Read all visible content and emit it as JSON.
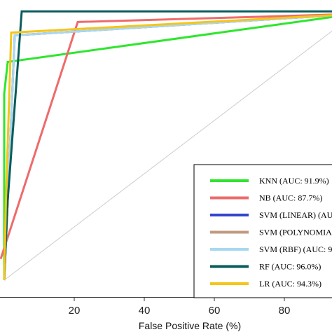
{
  "chart_data": {
    "type": "line",
    "title": "",
    "xlabel": "False Positive Rate (%)",
    "ylabel": "",
    "xlim": [
      -1.5,
      90
    ],
    "ylim": [
      0,
      100
    ],
    "x_ticks": [
      20,
      40,
      60,
      80
    ],
    "grid": false,
    "legend_placement": "bottom-right",
    "reference_line": {
      "from": [
        0,
        0
      ],
      "to": [
        100,
        100
      ],
      "color": "#cccccc"
    },
    "series": [
      {
        "name": "KNN (AUC: 91.9%)",
        "color": "#2ee62e",
        "x": [
          0,
          0,
          1,
          100
        ],
        "y": [
          0,
          70,
          82,
          100
        ]
      },
      {
        "name": "NB (AUC: 87.7%)",
        "color": "#ee6b6b",
        "x": [
          -1,
          21,
          100
        ],
        "y": [
          8,
          97,
          100
        ]
      },
      {
        "name": "SVM (LINEAR) (AUC",
        "color": "#3344cc",
        "x": [
          0,
          1,
          3,
          100
        ],
        "y": [
          0,
          30,
          92,
          100
        ]
      },
      {
        "name": "SVM (POLYNOMIAL",
        "color": "#c09a80",
        "x": [
          0,
          1,
          3,
          100
        ],
        "y": [
          0,
          30,
          92,
          100
        ]
      },
      {
        "name": "SVM (RBF) (AUC: 9",
        "color": "#a8d8f0",
        "x": [
          0,
          1,
          3,
          100
        ],
        "y": [
          0,
          30,
          92,
          100
        ]
      },
      {
        "name": "RF (AUC: 96.0%)",
        "color": "#0a5c5c",
        "x": [
          0,
          1,
          5,
          100
        ],
        "y": [
          0,
          30,
          101,
          101
        ]
      },
      {
        "name": "LR (AUC: 94.3%)",
        "color": "#f5c518",
        "x": [
          0,
          0.5,
          2,
          100
        ],
        "y": [
          0,
          30,
          93,
          100
        ]
      }
    ]
  }
}
